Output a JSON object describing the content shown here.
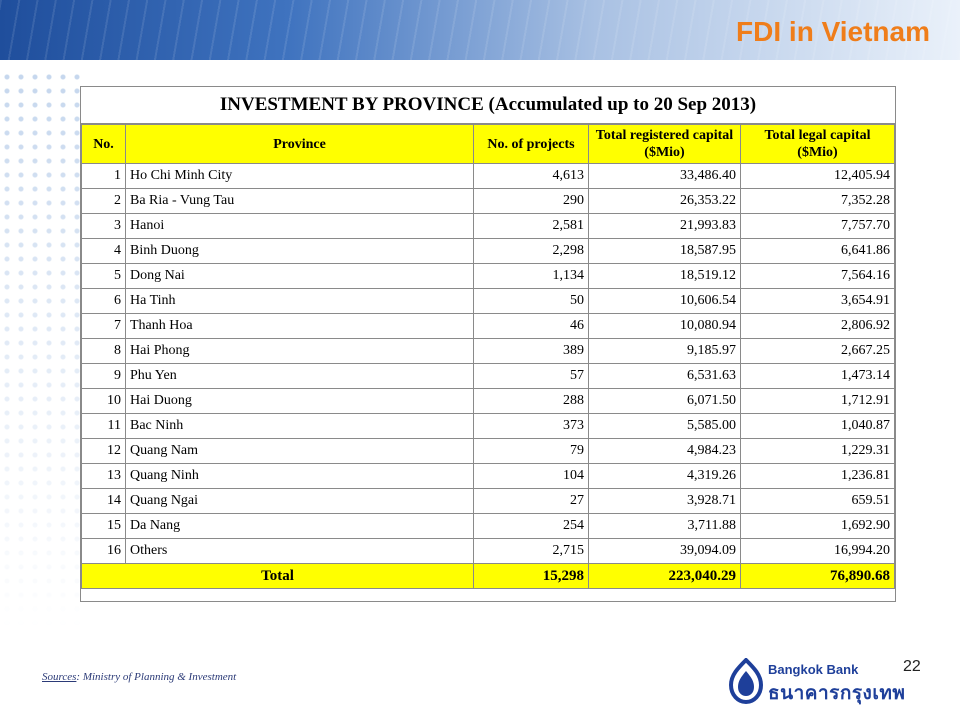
{
  "slide": {
    "title": "FDI in Vietnam",
    "page_number": "22",
    "source_label": "Sources",
    "source_text": ": Ministry of Planning & Investment",
    "logo_text_en": "Bangkok Bank",
    "logo_text_th": "ธนาคารกรุงเทพ"
  },
  "table": {
    "heading": "INVESTMENT BY PROVINCE (Accumulated up to 20 Sep 2013)",
    "columns": [
      "No.",
      "Province",
      "No. of projects",
      "Total registered capital ($Mio)",
      "Total legal capital ($Mio)"
    ],
    "rows": [
      {
        "no": "1",
        "province": "Ho Chi Minh City",
        "projects": "4,613",
        "registered": "33,486.40",
        "legal": "12,405.94"
      },
      {
        "no": "2",
        "province": "Ba Ria - Vung Tau",
        "projects": "290",
        "registered": "26,353.22",
        "legal": "7,352.28"
      },
      {
        "no": "3",
        "province": "Hanoi",
        "projects": "2,581",
        "registered": "21,993.83",
        "legal": "7,757.70"
      },
      {
        "no": "4",
        "province": "Binh Duong",
        "projects": "2,298",
        "registered": "18,587.95",
        "legal": "6,641.86"
      },
      {
        "no": "5",
        "province": "Dong Nai",
        "projects": "1,134",
        "registered": "18,519.12",
        "legal": "7,564.16"
      },
      {
        "no": "6",
        "province": "Ha Tinh",
        "projects": "50",
        "registered": "10,606.54",
        "legal": "3,654.91"
      },
      {
        "no": "7",
        "province": "Thanh Hoa",
        "projects": "46",
        "registered": "10,080.94",
        "legal": "2,806.92"
      },
      {
        "no": "8",
        "province": "Hai Phong",
        "projects": "389",
        "registered": "9,185.97",
        "legal": "2,667.25"
      },
      {
        "no": "9",
        "province": "Phu Yen",
        "projects": "57",
        "registered": "6,531.63",
        "legal": "1,473.14"
      },
      {
        "no": "10",
        "province": "Hai Duong",
        "projects": "288",
        "registered": "6,071.50",
        "legal": "1,712.91"
      },
      {
        "no": "11",
        "province": "Bac Ninh",
        "projects": "373",
        "registered": "5,585.00",
        "legal": "1,040.87"
      },
      {
        "no": "12",
        "province": "Quang Nam",
        "projects": "79",
        "registered": "4,984.23",
        "legal": "1,229.31"
      },
      {
        "no": "13",
        "province": "Quang Ninh",
        "projects": "104",
        "registered": "4,319.26",
        "legal": "1,236.81"
      },
      {
        "no": "14",
        "province": "Quang Ngai",
        "projects": "27",
        "registered": "3,928.71",
        "legal": "659.51"
      },
      {
        "no": "15",
        "province": "Da Nang",
        "projects": "254",
        "registered": "3,711.88",
        "legal": "1,692.90"
      },
      {
        "no": "16",
        "province": "Others",
        "projects": "2,715",
        "registered": "39,094.09",
        "legal": "16,994.20"
      }
    ],
    "total": {
      "label": "Total",
      "projects": "15,298",
      "registered": "223,040.29",
      "legal": "76,890.68"
    }
  },
  "colors": {
    "title": "#ef7d1a",
    "header_fill": "#ffff00",
    "brand_blue": "#1e3f9a"
  },
  "icons": [
    "bangkok-bank-logo-icon"
  ]
}
